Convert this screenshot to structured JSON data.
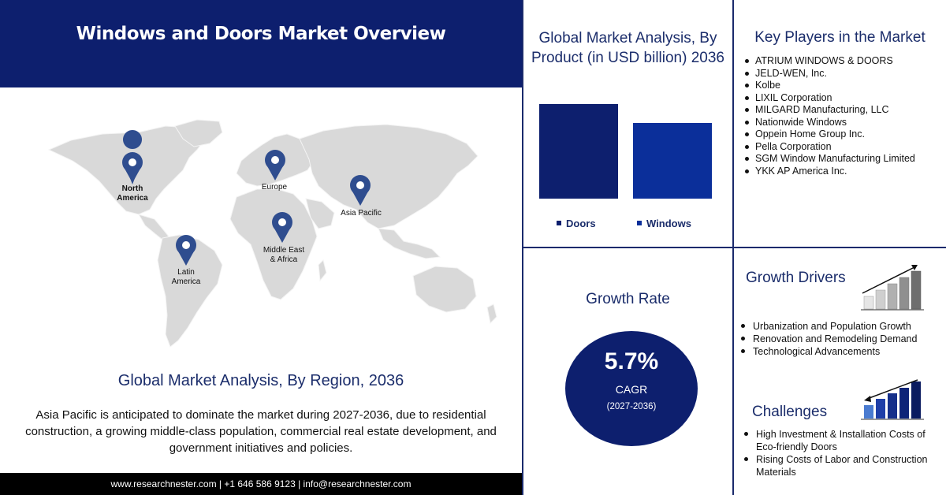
{
  "header": {
    "title": "Windows and Doors Market Overview"
  },
  "map": {
    "regions": [
      {
        "name_line1": "North",
        "name_line2": "America"
      },
      {
        "name_line1": "Europe",
        "name_line2": ""
      },
      {
        "name_line1": "Asia Pacific",
        "name_line2": ""
      },
      {
        "name_line1": "Middle East",
        "name_line2": "& Africa"
      },
      {
        "name_line1": "Latin",
        "name_line2": "America"
      }
    ],
    "pin_color": "#2f4d8f",
    "land_color": "#d9d9d9",
    "icon": "map-pin-icon"
  },
  "region_section": {
    "title": "Global Market Analysis, By Region, 2036",
    "text": "Asia Pacific is anticipated to dominate the market during 2027-2036, due to residential construction, a growing middle-class population, commercial real estate development, and government initiatives and policies."
  },
  "footer": {
    "text": "www.researchnester.com  | +1 646 586 9123 | info@researchnester.com"
  },
  "product_section": {
    "title": "Global Market Analysis, By Product (in USD billion) 2036"
  },
  "chart_data": {
    "type": "bar",
    "title": "Global Market Analysis, By Product (in USD billion) 2036",
    "categories": [
      "Doors",
      "Windows"
    ],
    "values": [
      1.0,
      0.8
    ],
    "value_note": "",
    "colors": [
      "#0d1f6e",
      "#0b2f9a"
    ],
    "xlabel": "",
    "ylabel": "",
    "grid": false,
    "legend": "bottom"
  },
  "players": {
    "title": "Key Players in the Market",
    "items": [
      "ATRIUM WINDOWS & DOORS",
      "JELD-WEN, Inc.",
      "Kolbe",
      "LIXIL Corporation",
      "MILGARD Manufacturing, LLC",
      "Nationwide Windows",
      "Oppein Home Group Inc.",
      "Pella Corporation",
      "SGM Window Manufacturing Limited",
      "YKK AP America Inc."
    ]
  },
  "growth": {
    "title": "Growth Rate",
    "value": "5.7%",
    "label": "CAGR",
    "period": "(2027-2036)",
    "circle_color": "#0d1f6e"
  },
  "drivers": {
    "title": "Growth Drivers",
    "icon": "rising-bars-icon",
    "items": [
      "Urbanization and Population Growth",
      "Renovation and Remodeling Demand",
      "Technological Advancements"
    ]
  },
  "challenges": {
    "title": "Challenges",
    "icon": "falling-trend-bars-icon",
    "items": [
      "High Investment & Installation Costs of Eco-friendly Doors",
      "Rising Costs of Labor and Construction Materials"
    ]
  }
}
